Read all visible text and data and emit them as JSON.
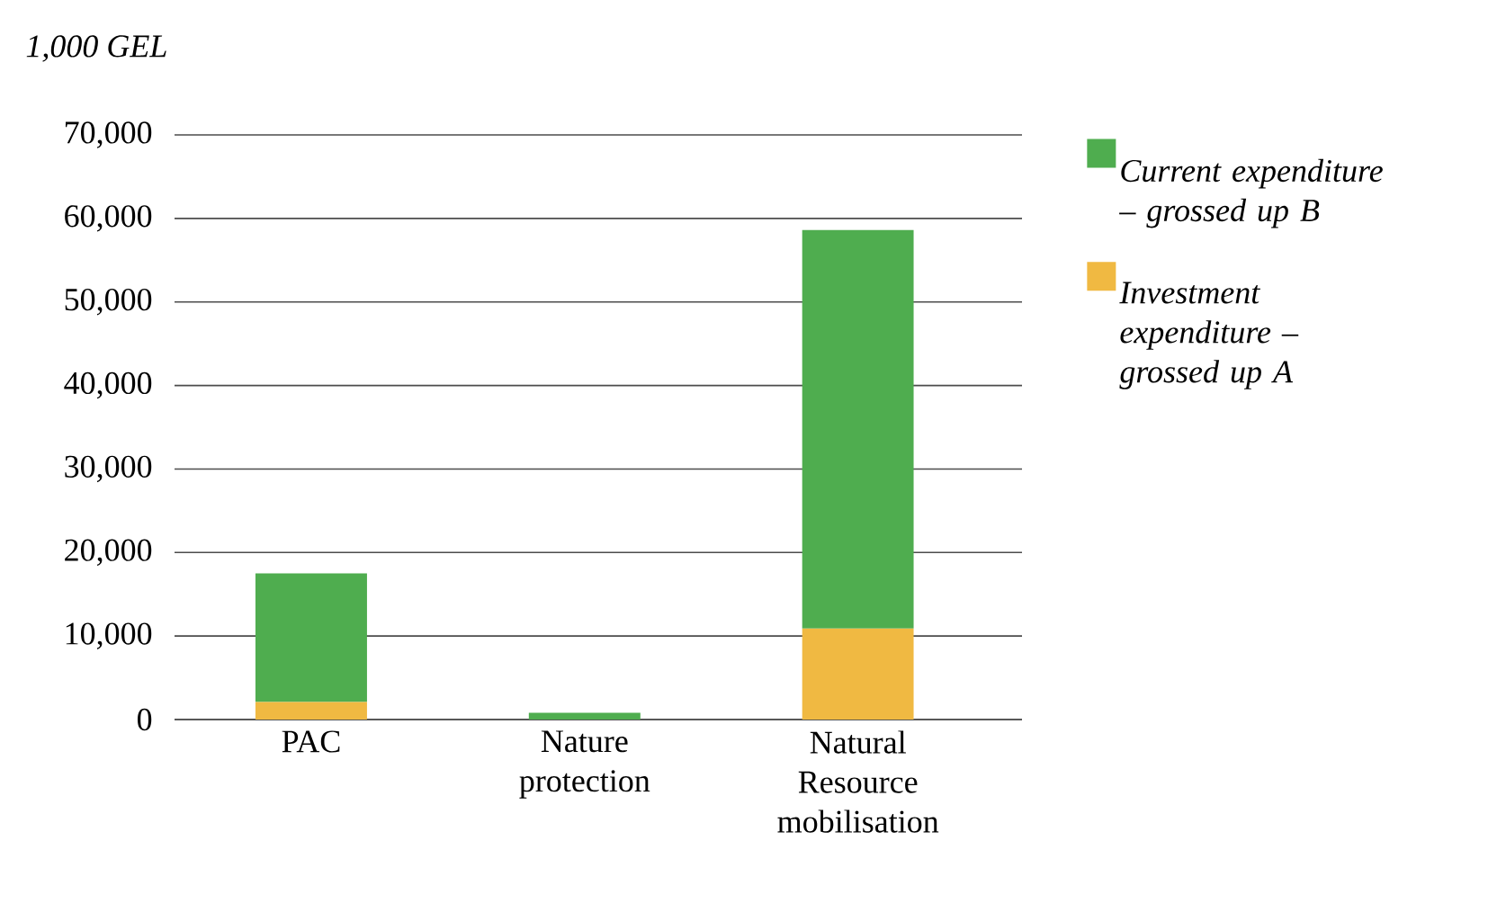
{
  "chart_data": {
    "type": "bar",
    "stacked": true,
    "ylabel": "1,000 GEL",
    "categories": [
      "PAC",
      "Nature protection",
      "Natural Resource mobilisation"
    ],
    "series": [
      {
        "name": "Investment expenditure – grossed up A",
        "color": "#f0b942",
        "values": [
          2100,
          0,
          10900
        ]
      },
      {
        "name": "Current expenditure – grossed up B",
        "color": "#4fad4f",
        "values": [
          15400,
          800,
          47700
        ]
      }
    ],
    "ylim": [
      0,
      70000
    ],
    "yticks": [
      {
        "value": 0,
        "label": "0"
      },
      {
        "value": 10000,
        "label": "10,000"
      },
      {
        "value": 20000,
        "label": "20,000"
      },
      {
        "value": 30000,
        "label": "30,000"
      },
      {
        "value": 40000,
        "label": "40,000"
      },
      {
        "value": 50000,
        "label": "50,000"
      },
      {
        "value": 60000,
        "label": "60,000"
      },
      {
        "value": 70000,
        "label": "70,000"
      }
    ],
    "grid": "y",
    "legend": "right"
  }
}
